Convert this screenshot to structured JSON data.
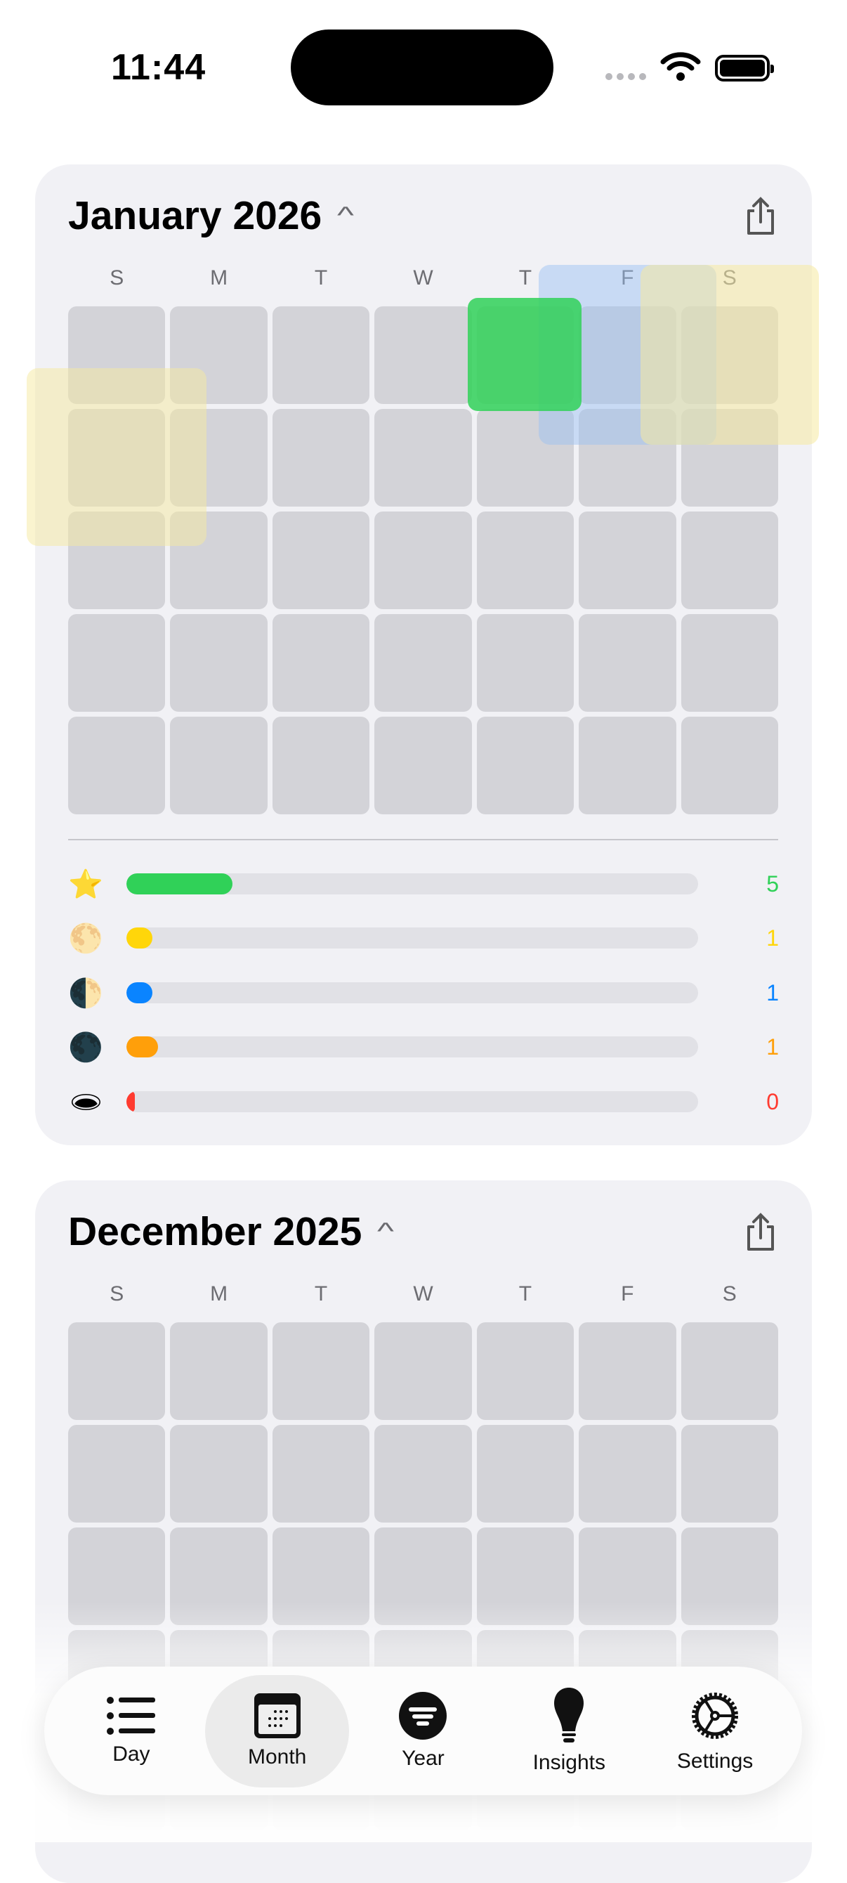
{
  "status_bar": {
    "time": "11:44"
  },
  "weekdays": [
    "S",
    "M",
    "T",
    "W",
    "T",
    "F",
    "S"
  ],
  "months": [
    {
      "title": "January 2026",
      "stats": [
        {
          "icon": "star-icon",
          "glyph": "⭐",
          "value": "5",
          "fill": 0.185,
          "color": "#30d158"
        },
        {
          "icon": "full-moon-icon",
          "glyph": "🌕",
          "value": "1",
          "fill": 0.045,
          "color": "#ffd60a"
        },
        {
          "icon": "first-quarter-moon-icon",
          "glyph": "🌓",
          "value": "1",
          "fill": 0.045,
          "color": "#0a84ff"
        },
        {
          "icon": "new-moon-icon",
          "glyph": "🌑",
          "value": "1",
          "fill": 0.055,
          "color": "#ff9f0a"
        },
        {
          "icon": "hole-icon",
          "glyph": "🕳",
          "value": "0",
          "fill": 0.015,
          "color": "#ff3b30"
        }
      ]
    },
    {
      "title": "December 2025"
    }
  ],
  "tabs": [
    {
      "label": "Day",
      "icon": "list-icon"
    },
    {
      "label": "Month",
      "icon": "calendar-icon",
      "active": true
    },
    {
      "label": "Year",
      "icon": "filter-circle-icon"
    },
    {
      "label": "Insights",
      "icon": "lightbulb-icon"
    },
    {
      "label": "Settings",
      "icon": "gear-icon"
    }
  ]
}
